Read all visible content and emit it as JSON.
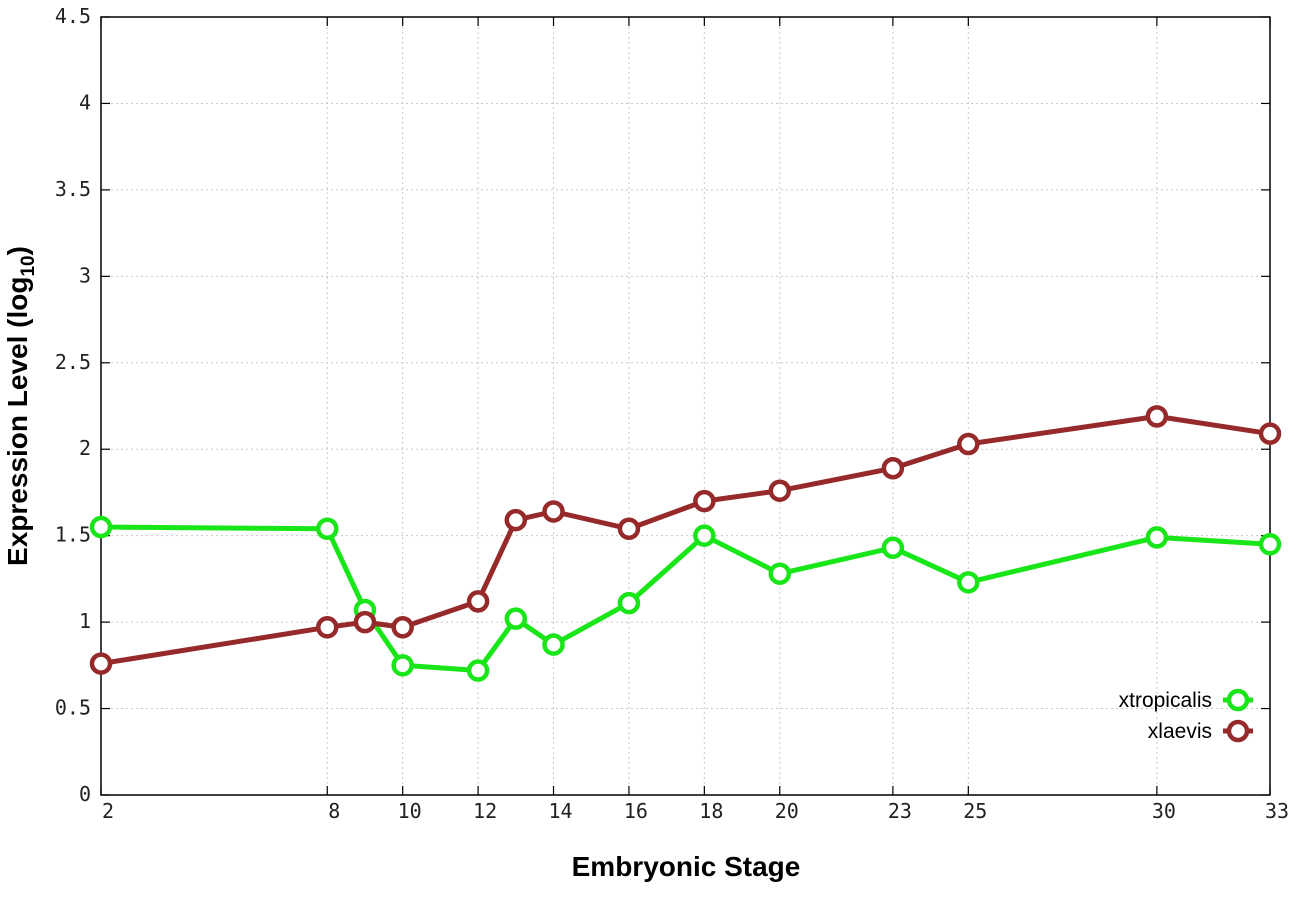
{
  "chart_data": {
    "type": "line",
    "xlabel": "Embryonic Stage",
    "ylabel_main": "Expression Level (log",
    "ylabel_sub": "10",
    "ylabel_close": ")",
    "ylim": [
      0,
      4.5
    ],
    "y_ticks": [
      "0",
      "0.5",
      "1",
      "1.5",
      "2",
      "2.5",
      "3",
      "3.5",
      "4",
      "4.5"
    ],
    "y_tick_values": [
      0,
      0.5,
      1,
      1.5,
      2,
      2.5,
      3,
      3.5,
      4,
      4.5
    ],
    "x_ticks": [
      "2",
      "8",
      "10",
      "12",
      "14",
      "16",
      "18",
      "20",
      "23",
      "25",
      "30",
      "33"
    ],
    "x_tick_values": [
      2,
      8,
      10,
      12,
      14,
      16,
      18,
      20,
      23,
      25,
      30,
      33
    ],
    "x_points": [
      2,
      8,
      9,
      10,
      12,
      13,
      14,
      16,
      18,
      20,
      23,
      25,
      30,
      33
    ],
    "grid": true,
    "legend_position": "bottom-right",
    "series": [
      {
        "name": "xtropicalis",
        "color": "#19e619",
        "values": [
          1.55,
          1.54,
          1.07,
          0.75,
          0.72,
          1.02,
          0.87,
          1.11,
          1.5,
          1.28,
          1.43,
          1.23,
          1.49,
          1.45
        ]
      },
      {
        "name": "xlaevis",
        "color": "#962a2a",
        "values": [
          0.76,
          0.97,
          1.0,
          0.97,
          1.12,
          1.59,
          1.64,
          1.54,
          1.7,
          1.76,
          1.89,
          2.03,
          2.19,
          2.09
        ]
      }
    ]
  }
}
